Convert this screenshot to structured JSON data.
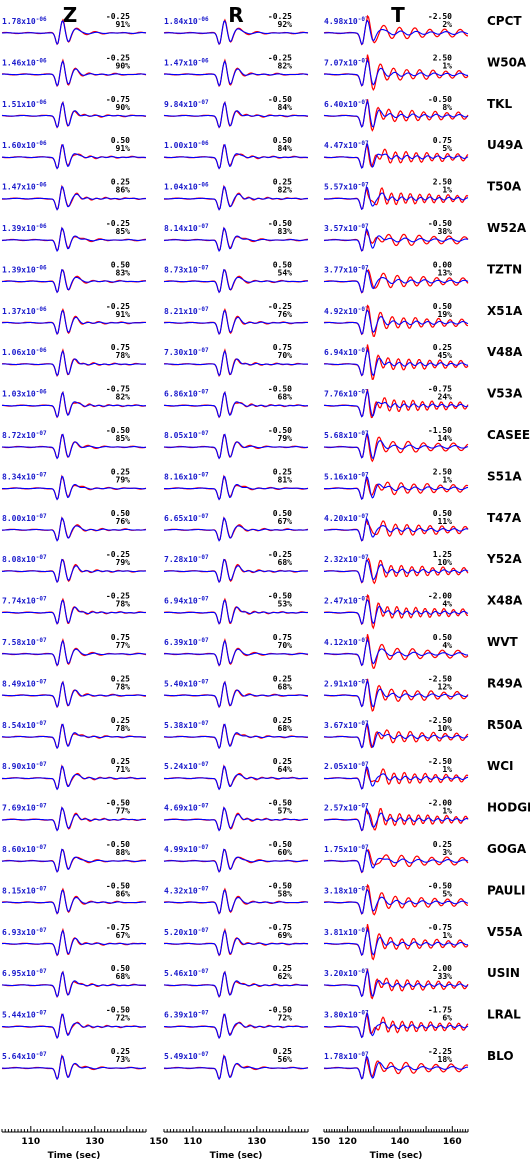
{
  "chart_data": {
    "type": "line",
    "components": [
      "Z",
      "R",
      "T"
    ],
    "series_colors": {
      "observed": "#ff0000",
      "synthetic": "#0000ff"
    },
    "x_axis": [
      {
        "ticks": [
          110,
          130,
          150
        ],
        "label": "Time (sec)"
      },
      {
        "ticks": [
          110,
          130,
          150
        ],
        "label": "Time (sec)"
      },
      {
        "ticks": [
          120,
          140,
          160
        ],
        "label": "Time (sec)"
      }
    ],
    "x_ranges": [
      [
        101,
        146
      ],
      [
        101,
        146
      ],
      [
        111,
        166
      ]
    ],
    "stations": [
      {
        "name": "CPCT",
        "Z": {
          "amp": "1.78x10",
          "exp": "-06",
          "shift": "-0.25",
          "pct": "91%"
        },
        "R": {
          "amp": "1.84x10",
          "exp": "-06",
          "shift": "-0.25",
          "pct": "92%"
        },
        "T": {
          "amp": "4.98x10",
          "exp": "-07",
          "shift": "-2.50",
          "pct": "2%"
        }
      },
      {
        "name": "W50A",
        "Z": {
          "amp": "1.46x10",
          "exp": "-06",
          "shift": "-0.25",
          "pct": "90%"
        },
        "R": {
          "amp": "1.47x10",
          "exp": "-06",
          "shift": "-0.25",
          "pct": "82%"
        },
        "T": {
          "amp": "7.07x10",
          "exp": "-07",
          "shift": "2.50",
          "pct": "1%"
        }
      },
      {
        "name": "TKL",
        "Z": {
          "amp": "1.51x10",
          "exp": "-06",
          "shift": "-0.75",
          "pct": "90%"
        },
        "R": {
          "amp": "9.84x10",
          "exp": "-07",
          "shift": "-0.50",
          "pct": "84%"
        },
        "T": {
          "amp": "6.40x10",
          "exp": "-07",
          "shift": "-0.50",
          "pct": "8%"
        }
      },
      {
        "name": "U49A",
        "Z": {
          "amp": "1.60x10",
          "exp": "-06",
          "shift": "0.50",
          "pct": "91%"
        },
        "R": {
          "amp": "1.00x10",
          "exp": "-06",
          "shift": "0.50",
          "pct": "84%"
        },
        "T": {
          "amp": "4.47x10",
          "exp": "-07",
          "shift": "0.75",
          "pct": "5%"
        }
      },
      {
        "name": "T50A",
        "Z": {
          "amp": "1.47x10",
          "exp": "-06",
          "shift": "0.25",
          "pct": "86%"
        },
        "R": {
          "amp": "1.04x10",
          "exp": "-06",
          "shift": "0.25",
          "pct": "82%"
        },
        "T": {
          "amp": "5.57x10",
          "exp": "-07",
          "shift": "2.50",
          "pct": "1%"
        }
      },
      {
        "name": "W52A",
        "Z": {
          "amp": "1.39x10",
          "exp": "-06",
          "shift": "-0.25",
          "pct": "85%"
        },
        "R": {
          "amp": "8.14x10",
          "exp": "-07",
          "shift": "-0.50",
          "pct": "83%"
        },
        "T": {
          "amp": "3.57x10",
          "exp": "-07",
          "shift": "-0.50",
          "pct": "38%"
        }
      },
      {
        "name": "TZTN",
        "Z": {
          "amp": "1.39x10",
          "exp": "-06",
          "shift": "0.50",
          "pct": "83%"
        },
        "R": {
          "amp": "8.73x10",
          "exp": "-07",
          "shift": "0.50",
          "pct": "54%"
        },
        "T": {
          "amp": "3.77x10",
          "exp": "-07",
          "shift": "0.00",
          "pct": "13%"
        }
      },
      {
        "name": "X51A",
        "Z": {
          "amp": "1.37x10",
          "exp": "-06",
          "shift": "-0.25",
          "pct": "91%"
        },
        "R": {
          "amp": "8.21x10",
          "exp": "-07",
          "shift": "-0.25",
          "pct": "76%"
        },
        "T": {
          "amp": "4.92x10",
          "exp": "-07",
          "shift": "0.50",
          "pct": "19%"
        }
      },
      {
        "name": "V48A",
        "Z": {
          "amp": "1.06x10",
          "exp": "-06",
          "shift": "0.75",
          "pct": "78%"
        },
        "R": {
          "amp": "7.30x10",
          "exp": "-07",
          "shift": "0.75",
          "pct": "70%"
        },
        "T": {
          "amp": "6.94x10",
          "exp": "-07",
          "shift": "0.25",
          "pct": "45%"
        }
      },
      {
        "name": "V53A",
        "Z": {
          "amp": "1.03x10",
          "exp": "-06",
          "shift": "-0.75",
          "pct": "82%"
        },
        "R": {
          "amp": "6.86x10",
          "exp": "-07",
          "shift": "-0.50",
          "pct": "68%"
        },
        "T": {
          "amp": "7.76x10",
          "exp": "-07",
          "shift": "-0.75",
          "pct": "24%"
        }
      },
      {
        "name": "CASEE",
        "Z": {
          "amp": "8.72x10",
          "exp": "-07",
          "shift": "-0.50",
          "pct": "85%"
        },
        "R": {
          "amp": "8.05x10",
          "exp": "-07",
          "shift": "-0.50",
          "pct": "79%"
        },
        "T": {
          "amp": "5.68x10",
          "exp": "-07",
          "shift": "-1.50",
          "pct": "14%"
        }
      },
      {
        "name": "S51A",
        "Z": {
          "amp": "8.34x10",
          "exp": "-07",
          "shift": "0.25",
          "pct": "79%"
        },
        "R": {
          "amp": "8.16x10",
          "exp": "-07",
          "shift": "0.25",
          "pct": "81%"
        },
        "T": {
          "amp": "5.16x10",
          "exp": "-07",
          "shift": "2.50",
          "pct": "1%"
        }
      },
      {
        "name": "T47A",
        "Z": {
          "amp": "8.00x10",
          "exp": "-07",
          "shift": "0.50",
          "pct": "76%"
        },
        "R": {
          "amp": "6.65x10",
          "exp": "-07",
          "shift": "0.50",
          "pct": "67%"
        },
        "T": {
          "amp": "4.20x10",
          "exp": "-07",
          "shift": "0.50",
          "pct": "11%"
        }
      },
      {
        "name": "Y52A",
        "Z": {
          "amp": "8.08x10",
          "exp": "-07",
          "shift": "-0.25",
          "pct": "79%"
        },
        "R": {
          "amp": "7.28x10",
          "exp": "-07",
          "shift": "-0.25",
          "pct": "68%"
        },
        "T": {
          "amp": "2.32x10",
          "exp": "-07",
          "shift": "1.25",
          "pct": "10%"
        }
      },
      {
        "name": "X48A",
        "Z": {
          "amp": "7.74x10",
          "exp": "-07",
          "shift": "-0.25",
          "pct": "78%"
        },
        "R": {
          "amp": "6.94x10",
          "exp": "-07",
          "shift": "-0.50",
          "pct": "53%"
        },
        "T": {
          "amp": "2.47x10",
          "exp": "-07",
          "shift": "-2.00",
          "pct": "4%"
        }
      },
      {
        "name": "WVT",
        "Z": {
          "amp": "7.58x10",
          "exp": "-07",
          "shift": "0.75",
          "pct": "77%"
        },
        "R": {
          "amp": "6.39x10",
          "exp": "-07",
          "shift": "0.75",
          "pct": "70%"
        },
        "T": {
          "amp": "4.12x10",
          "exp": "-07",
          "shift": "0.50",
          "pct": "4%"
        }
      },
      {
        "name": "R49A",
        "Z": {
          "amp": "8.49x10",
          "exp": "-07",
          "shift": "0.25",
          "pct": "78%"
        },
        "R": {
          "amp": "5.40x10",
          "exp": "-07",
          "shift": "0.25",
          "pct": "68%"
        },
        "T": {
          "amp": "2.91x10",
          "exp": "-07",
          "shift": "-2.50",
          "pct": "12%"
        }
      },
      {
        "name": "R50A",
        "Z": {
          "amp": "8.54x10",
          "exp": "-07",
          "shift": "0.25",
          "pct": "78%"
        },
        "R": {
          "amp": "5.38x10",
          "exp": "-07",
          "shift": "0.25",
          "pct": "68%"
        },
        "T": {
          "amp": "3.67x10",
          "exp": "-07",
          "shift": "-2.50",
          "pct": "10%"
        }
      },
      {
        "name": "WCI",
        "Z": {
          "amp": "8.90x10",
          "exp": "-07",
          "shift": "0.25",
          "pct": "71%"
        },
        "R": {
          "amp": "5.24x10",
          "exp": "-07",
          "shift": "0.25",
          "pct": "64%"
        },
        "T": {
          "amp": "2.05x10",
          "exp": "-07",
          "shift": "-2.50",
          "pct": "1%"
        }
      },
      {
        "name": "HODGE",
        "Z": {
          "amp": "7.69x10",
          "exp": "-07",
          "shift": "-0.50",
          "pct": "77%"
        },
        "R": {
          "amp": "4.69x10",
          "exp": "-07",
          "shift": "-0.50",
          "pct": "57%"
        },
        "T": {
          "amp": "2.57x10",
          "exp": "-07",
          "shift": "-2.00",
          "pct": "1%"
        }
      },
      {
        "name": "GOGA",
        "Z": {
          "amp": "8.60x10",
          "exp": "-07",
          "shift": "-0.50",
          "pct": "88%"
        },
        "R": {
          "amp": "4.99x10",
          "exp": "-07",
          "shift": "-0.50",
          "pct": "60%"
        },
        "T": {
          "amp": "1.75x10",
          "exp": "-07",
          "shift": "0.25",
          "pct": "3%"
        }
      },
      {
        "name": "PAULI",
        "Z": {
          "amp": "8.15x10",
          "exp": "-07",
          "shift": "-0.50",
          "pct": "86%"
        },
        "R": {
          "amp": "4.32x10",
          "exp": "-07",
          "shift": "-0.50",
          "pct": "58%"
        },
        "T": {
          "amp": "3.18x10",
          "exp": "-07",
          "shift": "-0.50",
          "pct": "5%"
        }
      },
      {
        "name": "V55A",
        "Z": {
          "amp": "6.93x10",
          "exp": "-07",
          "shift": "-0.75",
          "pct": "67%"
        },
        "R": {
          "amp": "5.20x10",
          "exp": "-07",
          "shift": "-0.75",
          "pct": "69%"
        },
        "T": {
          "amp": "3.81x10",
          "exp": "-07",
          "shift": "-0.75",
          "pct": "1%"
        }
      },
      {
        "name": "USIN",
        "Z": {
          "amp": "6.95x10",
          "exp": "-07",
          "shift": "0.50",
          "pct": "68%"
        },
        "R": {
          "amp": "5.46x10",
          "exp": "-07",
          "shift": "0.25",
          "pct": "62%"
        },
        "T": {
          "amp": "3.20x10",
          "exp": "-07",
          "shift": "2.00",
          "pct": "33%"
        }
      },
      {
        "name": "LRAL",
        "Z": {
          "amp": "5.44x10",
          "exp": "-07",
          "shift": "-0.50",
          "pct": "72%"
        },
        "R": {
          "amp": "6.39x10",
          "exp": "-07",
          "shift": "-0.50",
          "pct": "72%"
        },
        "T": {
          "amp": "3.80x10",
          "exp": "-07",
          "shift": "-1.75",
          "pct": "6%"
        }
      },
      {
        "name": "BLO",
        "Z": {
          "amp": "5.64x10",
          "exp": "-07",
          "shift": "0.25",
          "pct": "73%"
        },
        "R": {
          "amp": "5.49x10",
          "exp": "-07",
          "shift": "0.25",
          "pct": "56%"
        },
        "T": {
          "amp": "1.78x10",
          "exp": "-07",
          "shift": "-2.25",
          "pct": "18%"
        }
      }
    ]
  }
}
